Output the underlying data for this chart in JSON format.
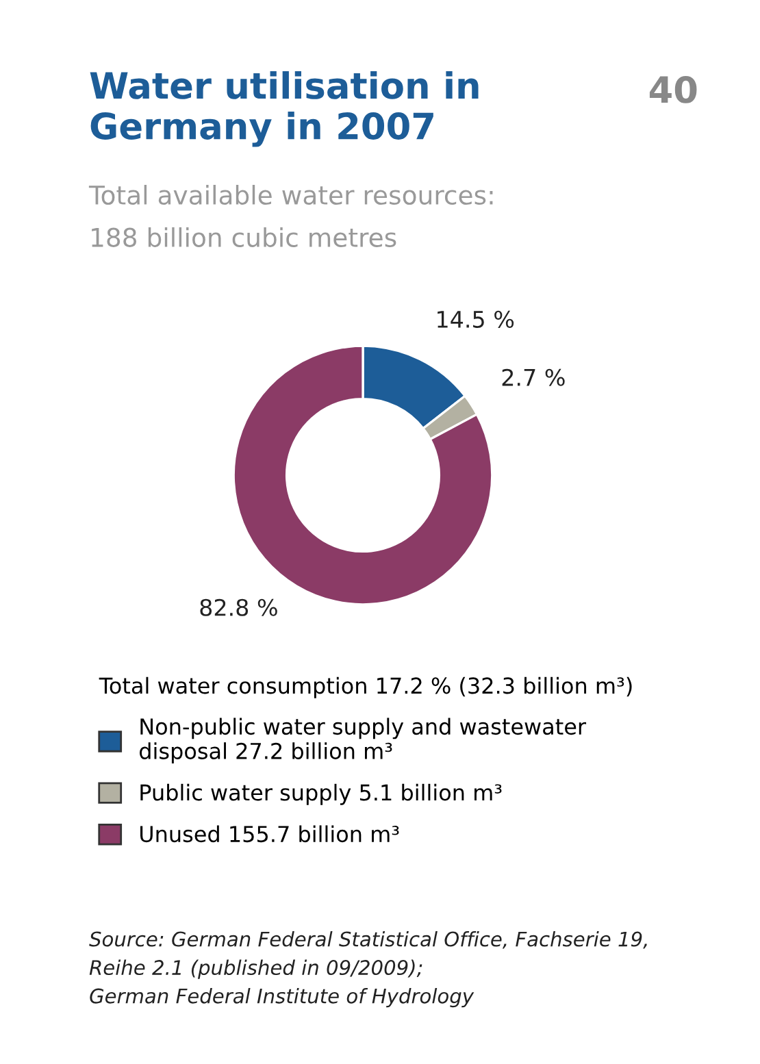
{
  "chart_data": {
    "type": "donut",
    "title": "Water utilisation in\nGermany in 2007",
    "subtitle": "Total available water resources:\n188 billion cubic metres",
    "legend_title": "Total water consumption 17.2 % (32.3 billion m³)",
    "categories": [
      "Non-public water supply and wastewater\ndisposal 27.2 billion m³",
      "Public water supply 5.1 billion m³",
      "Unused 155.7 billion m³"
    ],
    "values": [
      14.5,
      2.7,
      82.8
    ],
    "colors": [
      "#1d5d98",
      "#b3b1a2",
      "#8b3b66"
    ],
    "value_labels": [
      "14.5 %",
      "2.7 %",
      "82.8 %"
    ],
    "legend": "bottom",
    "annotations": [
      "40",
      "Source: German Federal Statistical Office, Fachserie 19,\nReihe 2.1 (published in 09/2009);\nGerman Federal Institute of Hydrology"
    ]
  }
}
